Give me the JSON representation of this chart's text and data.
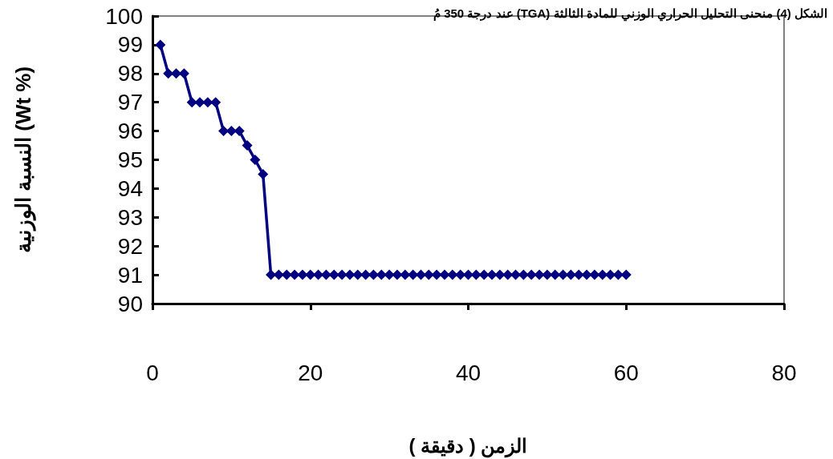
{
  "chart_data": {
    "type": "line",
    "title": "الشكل (4) منحنى التحليل الحراري الوزني للمادة الثالثة (TGA) عند درجة 350 مُ",
    "xlabel": "الزمن ( دقيقة )",
    "ylabel": "النسبة الوزنية (Wt %)",
    "x": [
      1,
      2,
      3,
      4,
      5,
      6,
      7,
      8,
      9,
      10,
      11,
      12,
      13,
      14,
      15,
      16,
      17,
      18,
      19,
      20,
      21,
      22,
      23,
      24,
      25,
      26,
      27,
      28,
      29,
      30,
      31,
      32,
      33,
      34,
      35,
      36,
      37,
      38,
      39,
      40,
      41,
      42,
      43,
      44,
      45,
      46,
      47,
      48,
      49,
      50,
      51,
      52,
      53,
      54,
      55,
      56,
      57,
      58,
      59,
      60
    ],
    "series": [
      {
        "color": "#000080",
        "values": [
          99,
          98,
          98,
          98,
          97,
          97,
          97,
          97,
          96,
          96,
          96,
          95.5,
          95,
          94.5,
          91,
          91,
          91,
          91,
          91,
          91,
          91,
          91,
          91,
          91,
          91,
          91,
          91,
          91,
          91,
          91,
          91,
          91,
          91,
          91,
          91,
          91,
          91,
          91,
          91,
          91,
          91,
          91,
          91,
          91,
          91,
          91,
          91,
          91,
          91,
          91,
          91,
          91,
          91,
          91,
          91,
          91,
          91,
          91,
          91,
          91
        ]
      }
    ],
    "xlim": [
      0,
      80
    ],
    "xticks": [
      0,
      20,
      40,
      60,
      80
    ],
    "ylim": [
      90,
      100
    ],
    "yticks": [
      90,
      91,
      92,
      93,
      94,
      95,
      96,
      97,
      98,
      99,
      100
    ],
    "marker": "diamond",
    "line_style": "solid",
    "grid": false
  }
}
